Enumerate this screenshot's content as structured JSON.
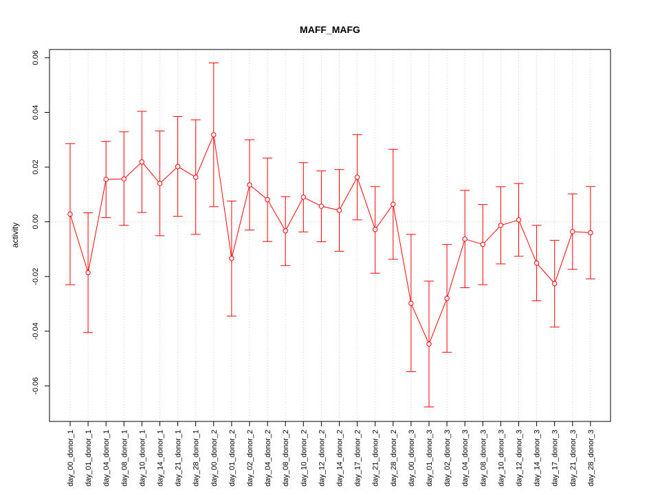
{
  "chart_data": {
    "type": "line",
    "title": "MAFF_MAFG",
    "xlabel": "",
    "ylabel": "activity",
    "ylim": [
      -0.073,
      0.063
    ],
    "y_ticks": [
      -0.06,
      -0.04,
      -0.02,
      0.0,
      0.02,
      0.04,
      0.06
    ],
    "y_tick_labels": [
      "-0.06",
      "-0.04",
      "-0.02",
      "0.00",
      "0.02",
      "0.04",
      "0.06"
    ],
    "grid": true,
    "color": "#ff0000",
    "categories": [
      "day_00_donor_1",
      "day_01_donor_1",
      "day_04_donor_1",
      "day_08_donor_1",
      "day_10_donor_1",
      "day_14_donor_1",
      "day_21_donor_1",
      "day_28_donor_1",
      "day_00_donor_2",
      "day_01_donor_2",
      "day_02_donor_2",
      "day_04_donor_2",
      "day_08_donor_2",
      "day_10_donor_2",
      "day_12_donor_2",
      "day_14_donor_2",
      "day_17_donor_2",
      "day_21_donor_2",
      "day_28_donor_2",
      "day_00_donor_3",
      "day_01_donor_3",
      "day_02_donor_3",
      "day_04_donor_3",
      "day_08_donor_3",
      "day_10_donor_3",
      "day_12_donor_3",
      "day_14_donor_3",
      "day_17_donor_3",
      "day_21_donor_3",
      "day_28_donor_3"
    ],
    "values": [
      0.0028,
      -0.0186,
      0.0155,
      0.0157,
      0.0219,
      0.014,
      0.0202,
      0.0163,
      0.0318,
      -0.0134,
      0.0135,
      0.0081,
      -0.0033,
      0.009,
      0.0057,
      0.0042,
      0.0163,
      -0.0028,
      0.0064,
      -0.0298,
      -0.0447,
      -0.028,
      -0.0063,
      -0.0083,
      -0.0013,
      0.0007,
      -0.0151,
      -0.0226,
      -0.0036,
      -0.004
    ],
    "upper": [
      0.0286,
      0.0033,
      0.0294,
      0.0329,
      0.0404,
      0.0332,
      0.0385,
      0.0373,
      0.0581,
      0.0076,
      0.03,
      0.0233,
      0.0092,
      0.0216,
      0.0186,
      0.0191,
      0.0319,
      0.0129,
      0.0265,
      -0.0046,
      -0.0217,
      -0.0083,
      0.0115,
      0.0063,
      0.0128,
      0.014,
      -0.0013,
      -0.0068,
      0.0102,
      0.0129
    ],
    "lower": [
      -0.023,
      -0.0405,
      0.0015,
      -0.0013,
      0.0034,
      -0.0051,
      0.002,
      -0.0046,
      0.0055,
      -0.0345,
      -0.003,
      -0.0072,
      -0.016,
      -0.0037,
      -0.0073,
      -0.0108,
      0.0007,
      -0.0188,
      -0.0137,
      -0.0548,
      -0.0677,
      -0.0477,
      -0.0241,
      -0.023,
      -0.0154,
      -0.0126,
      -0.0289,
      -0.0385,
      -0.0174,
      -0.0209
    ]
  }
}
